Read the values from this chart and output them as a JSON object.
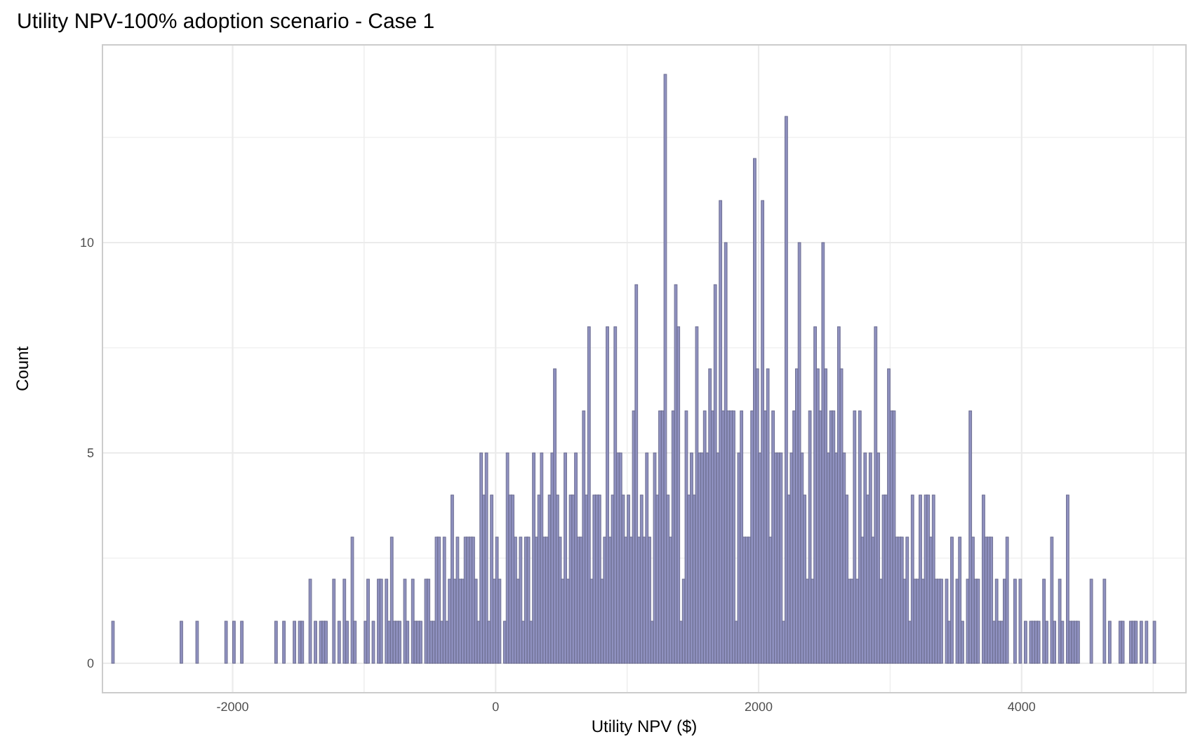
{
  "chart_data": {
    "type": "histogram",
    "title": "Utility NPV-100% adoption scenario - Case 1",
    "xlabel": "Utility NPV ($)",
    "ylabel": "Count",
    "color": "#8f91c0",
    "bins": [
      -2940,
      -2920,
      -2900,
      -2880,
      -2860,
      -2840,
      -2820,
      -2800,
      -2780,
      -2760,
      -2740,
      -2720,
      -2700,
      -2680,
      -2660,
      -2640,
      -2620,
      -2600,
      -2580,
      -2560,
      -2540,
      -2520,
      -2500,
      -2480,
      -2460,
      -2440,
      -2420,
      -2400,
      -2380,
      -2360,
      -2340,
      -2320,
      -2300,
      -2280,
      -2260,
      -2240,
      -2220,
      -2200,
      -2180,
      -2160,
      -2140,
      -2120,
      -2100,
      -2080,
      -2060,
      -2040,
      -2020,
      -2000,
      -1980,
      -1960,
      -1940,
      -1920,
      -1900,
      -1880,
      -1860,
      -1840,
      -1820,
      -1800,
      -1780,
      -1760,
      -1740,
      -1720,
      -1700,
      -1680,
      -1660,
      -1640,
      -1620,
      -1600,
      -1580,
      -1560,
      -1540,
      -1520,
      -1500,
      -1480,
      -1460,
      -1440,
      -1420,
      -1400,
      -1380,
      -1360,
      -1340,
      -1320,
      -1300,
      -1280,
      -1260,
      -1240,
      -1220,
      -1200,
      -1180,
      -1160,
      -1140,
      -1120,
      -1100,
      -1080,
      -1060,
      -1040,
      -1020,
      -1000,
      -980,
      -960,
      -940,
      -920,
      -900,
      -880,
      -860,
      -840,
      -820,
      -800,
      -780,
      -760,
      -740,
      -720,
      -700,
      -680,
      -660,
      -640,
      -620,
      -600,
      -580,
      -560,
      -540,
      -520,
      -500,
      -480,
      -460,
      -440,
      -420,
      -400,
      -380,
      -360,
      -340,
      -320,
      -300,
      -280,
      -260,
      -240,
      -220,
      -200,
      -180,
      -160,
      -140,
      -120,
      -100,
      -80,
      -60,
      -40,
      -20,
      0,
      20,
      40,
      60,
      80,
      100,
      120,
      140,
      160,
      180,
      200,
      220,
      240,
      260,
      280,
      300,
      320,
      340,
      360,
      380,
      400,
      420,
      440,
      460,
      480,
      500,
      520,
      540,
      560,
      580,
      600,
      620,
      640,
      660,
      680,
      700,
      720,
      740,
      760,
      780,
      800,
      820,
      840,
      860,
      880,
      900,
      920,
      940,
      960,
      980,
      1000,
      1020,
      1040,
      1060,
      1080,
      1100,
      1120,
      1140,
      1160,
      1180,
      1200,
      1220,
      1240,
      1260,
      1280,
      1300,
      1320,
      1340,
      1360,
      1380,
      1400,
      1420,
      1440,
      1460,
      1480,
      1500,
      1520,
      1540,
      1560,
      1580,
      1600,
      1620,
      1640,
      1660,
      1680,
      1700,
      1720,
      1740,
      1760,
      1780,
      1800,
      1820,
      1840,
      1860,
      1880,
      1900,
      1920,
      1940,
      1960,
      1980,
      2000,
      2020,
      2040,
      2060,
      2080,
      2100,
      2120,
      2140,
      2160,
      2180,
      2200,
      2220,
      2240,
      2260,
      2280,
      2300,
      2320,
      2340,
      2360,
      2380,
      2400,
      2420,
      2440,
      2460,
      2480,
      2500,
      2520,
      2540,
      2560,
      2580,
      2600,
      2620,
      2640,
      2660,
      2680,
      2700,
      2720,
      2740,
      2760,
      2780,
      2800,
      2820,
      2840,
      2860,
      2880,
      2900,
      2920,
      2940,
      2960,
      2980,
      3000,
      3020,
      3040,
      3060,
      3080,
      3100,
      3120,
      3140,
      3160,
      3180,
      3200,
      3220,
      3240,
      3260,
      3280,
      3300,
      3320,
      3340,
      3360,
      3380,
      3400,
      3420,
      3440,
      3460,
      3480,
      3500,
      3520,
      3540,
      3560,
      3580,
      3600,
      3620,
      3640,
      3660,
      3680,
      3700,
      3720,
      3740,
      3760,
      3780,
      3800,
      3820,
      3840,
      3860,
      3880,
      3900,
      3920,
      3940,
      3960,
      3980,
      4000,
      4020,
      4040,
      4060,
      4080,
      4100,
      4120,
      4140,
      4160,
      4180,
      4200,
      4220,
      4240,
      4260,
      4280,
      4300,
      4320,
      4340,
      4360,
      4380,
      4400,
      4420,
      4440,
      4460,
      4480,
      4500,
      4520,
      4540,
      4560,
      4580,
      4600,
      4620,
      4640,
      4660,
      4680,
      4700,
      4720,
      4740,
      4760,
      4780,
      4800,
      4820,
      4840,
      4860,
      4880,
      4900,
      4920,
      4940,
      4960,
      4980,
      5000,
      5020
    ],
    "values": [
      0,
      1,
      0,
      0,
      0,
      0,
      0,
      0,
      0,
      0,
      0,
      0,
      0,
      0,
      0,
      0,
      0,
      0,
      0,
      0,
      0,
      0,
      0,
      0,
      0,
      0,
      0,
      1,
      0,
      0,
      0,
      0,
      0,
      1,
      0,
      0,
      0,
      0,
      0,
      0,
      0,
      0,
      0,
      0,
      1,
      0,
      0,
      1,
      0,
      0,
      1,
      0,
      0,
      0,
      0,
      0,
      0,
      0,
      0,
      0,
      0,
      0,
      0,
      1,
      0,
      0,
      1,
      0,
      0,
      0,
      1,
      0,
      1,
      1,
      0,
      0,
      2,
      0,
      1,
      0,
      1,
      1,
      1,
      0,
      0,
      2,
      0,
      1,
      0,
      2,
      1,
      0,
      3,
      1,
      0,
      0,
      0,
      1,
      2,
      0,
      1,
      0,
      2,
      2,
      0,
      2,
      1,
      3,
      1,
      1,
      1,
      0,
      2,
      1,
      0,
      2,
      1,
      1,
      1,
      0,
      2,
      2,
      1,
      1,
      3,
      3,
      1,
      3,
      1,
      2,
      4,
      2,
      3,
      2,
      2,
      3,
      3,
      3,
      3,
      2,
      1,
      5,
      4,
      5,
      1,
      4,
      2,
      3,
      2,
      0,
      1,
      5,
      4,
      4,
      3,
      2,
      3,
      1,
      3,
      3,
      1,
      5,
      3,
      4,
      5,
      3,
      3,
      4,
      5,
      7,
      4,
      3,
      2,
      5,
      2,
      4,
      4,
      5,
      3,
      3,
      6,
      4,
      8,
      2,
      4,
      4,
      4,
      2,
      3,
      8,
      3,
      4,
      8,
      5,
      5,
      4,
      3,
      4,
      3,
      6,
      9,
      3,
      4,
      3,
      5,
      3,
      1,
      5,
      4,
      6,
      6,
      14,
      4,
      3,
      6,
      9,
      8,
      1,
      2,
      6,
      4,
      5,
      4,
      8,
      5,
      5,
      6,
      5,
      7,
      6,
      9,
      5,
      11,
      6,
      10,
      6,
      6,
      6,
      1,
      5,
      6,
      3,
      3,
      3,
      6,
      12,
      7,
      5,
      11,
      6,
      7,
      3,
      6,
      5,
      5,
      5,
      1,
      13,
      4,
      5,
      6,
      7,
      10,
      5,
      4,
      2,
      6,
      2,
      8,
      7,
      6,
      10,
      7,
      5,
      6,
      6,
      5,
      8,
      7,
      5,
      4,
      2,
      2,
      6,
      2,
      6,
      3,
      5,
      4,
      5,
      3,
      8,
      5,
      2,
      4,
      4,
      7,
      6,
      6,
      3,
      3,
      3,
      2,
      3,
      1,
      4,
      2,
      2,
      4,
      2,
      4,
      4,
      3,
      4,
      2,
      2,
      2,
      0,
      2,
      1,
      3,
      0,
      2,
      3,
      1,
      0,
      2,
      6,
      3,
      2,
      2,
      0,
      4,
      3,
      3,
      3,
      1,
      2,
      1,
      1,
      2,
      3,
      0,
      0,
      2,
      0,
      2,
      0,
      1,
      0,
      1,
      1,
      1,
      1,
      0,
      2,
      1,
      0,
      3,
      1,
      0,
      2,
      1,
      0,
      4,
      1,
      1,
      1,
      1,
      0,
      0,
      0,
      0,
      2,
      0,
      0,
      0,
      0,
      2,
      0,
      1,
      0,
      0,
      0,
      1,
      1,
      0,
      0,
      1,
      1,
      1,
      0,
      1,
      0,
      1,
      0,
      0,
      1
    ],
    "xlim": [
      -2990,
      5250
    ],
    "xticks": [
      -2000,
      {
        "value": -1000,
        "label": null
      },
      0,
      {
        "value": 1000,
        "label": null
      },
      2000,
      {
        "value": 3000,
        "label": null
      },
      4000,
      {
        "value": 5000,
        "label": null
      }
    ],
    "ylim": [
      -0.7,
      14.7
    ],
    "yticks": [
      0,
      {
        "value": 2.5,
        "label": null
      },
      5,
      {
        "value": 7.5,
        "label": null
      },
      10,
      {
        "value": 12.5,
        "label": null
      }
    ],
    "grid": true
  }
}
